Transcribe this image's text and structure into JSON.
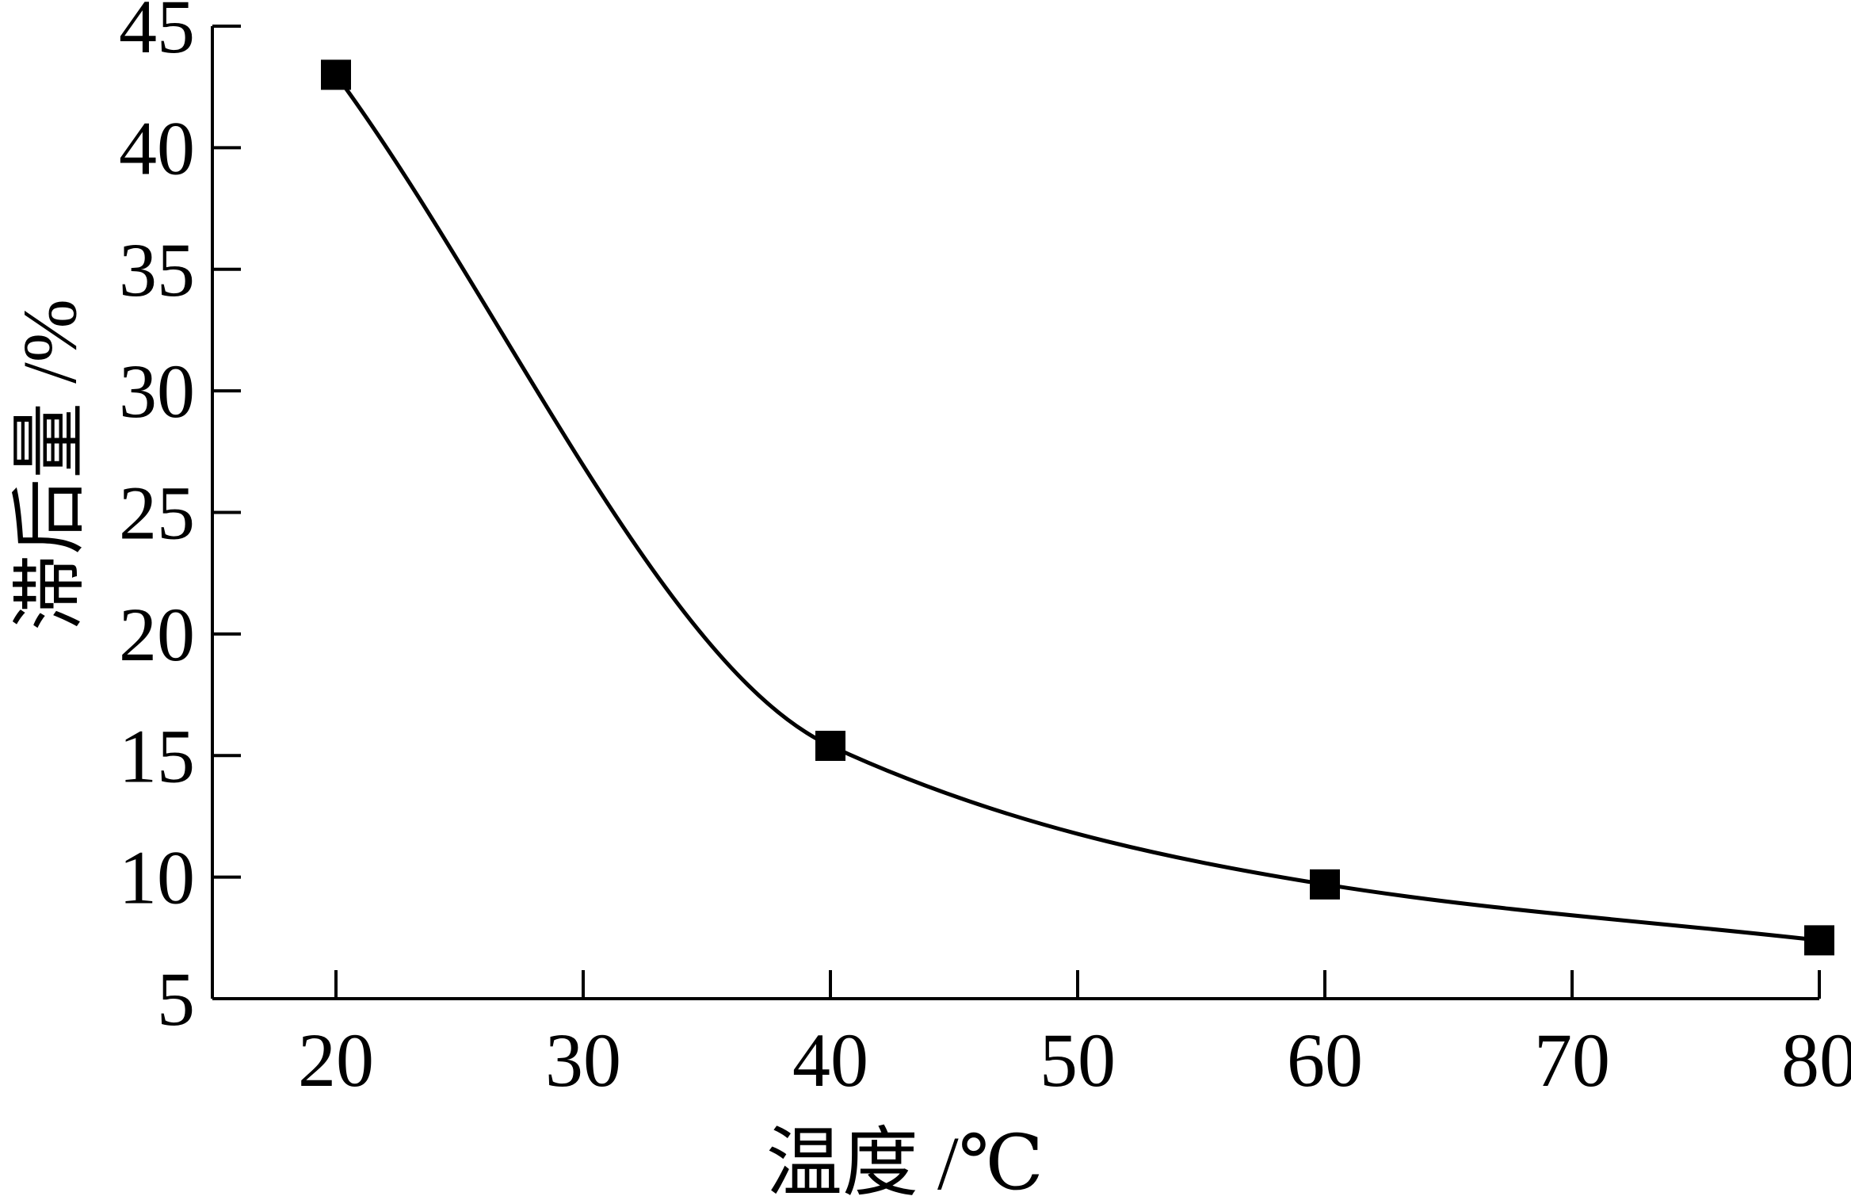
{
  "chart_data": {
    "type": "line",
    "xlabel": "温度 /℃",
    "ylabel": "滞后量 /%",
    "xlim": [
      15,
      80
    ],
    "ylim": [
      5,
      45
    ],
    "x_ticks": [
      20,
      30,
      40,
      50,
      60,
      70,
      80
    ],
    "y_ticks": [
      5,
      10,
      15,
      20,
      25,
      30,
      35,
      40,
      45
    ],
    "grid": false,
    "series": [
      {
        "x": [
          20,
          40,
          60,
          80
        ],
        "values": [
          43.0,
          15.4,
          9.7,
          7.4
        ],
        "marker": "square",
        "color": "#000000"
      }
    ]
  }
}
